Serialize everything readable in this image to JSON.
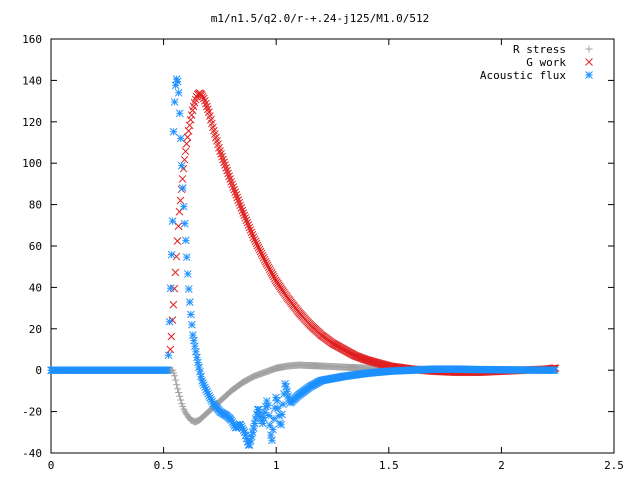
{
  "chart_data": {
    "type": "scatter",
    "title": "m1/n1.5/q2.0/r-+.24-j125/M1.0/512",
    "xlabel": "",
    "ylabel": "",
    "xlim": [
      0,
      2.5
    ],
    "ylim": [
      -40,
      160
    ],
    "xticks": [
      0,
      0.5,
      1,
      1.5,
      2,
      2.5
    ],
    "yticks": [
      -40,
      -20,
      0,
      20,
      40,
      60,
      80,
      100,
      120,
      140,
      160
    ],
    "xtick_labels": [
      "0",
      "0.5",
      "1",
      "1.5",
      "2",
      "2.5"
    ],
    "ytick_labels": [
      "-40",
      "-20",
      "0",
      "20",
      "40",
      "60",
      "80",
      "100",
      "120",
      "140",
      "160"
    ],
    "grid": false,
    "legend_position": "top-right",
    "series": [
      {
        "name": "R stress",
        "marker": "plus",
        "color": "#a0a0a0",
        "x": [
          0,
          0.1,
          0.2,
          0.3,
          0.4,
          0.5,
          0.54,
          0.55,
          0.56,
          0.57,
          0.58,
          0.59,
          0.6,
          0.62,
          0.64,
          0.66,
          0.68,
          0.7,
          0.75,
          0.8,
          0.85,
          0.9,
          0.95,
          1.0,
          1.05,
          1.1,
          1.2,
          1.3,
          1.4,
          1.5,
          1.6,
          1.8,
          2.0,
          2.2,
          2.24
        ],
        "y": [
          0,
          0,
          0,
          0,
          0,
          0,
          0,
          -3,
          -8,
          -12,
          -16,
          -19,
          -21,
          -24,
          -25,
          -24,
          -22,
          -20,
          -15,
          -10,
          -6,
          -3,
          -1,
          1,
          2,
          2.5,
          2,
          1.5,
          1,
          0.8,
          0.5,
          0.3,
          0.2,
          0.1,
          0
        ]
      },
      {
        "name": "G work",
        "marker": "cross",
        "color": "#e02020",
        "x": [
          0.53,
          0.535,
          0.54,
          0.545,
          0.55,
          0.56,
          0.57,
          0.58,
          0.59,
          0.6,
          0.61,
          0.62,
          0.63,
          0.64,
          0.65,
          0.66,
          0.67,
          0.68,
          0.7,
          0.72,
          0.75,
          0.8,
          0.85,
          0.9,
          0.95,
          1.0,
          1.05,
          1.1,
          1.15,
          1.2,
          1.25,
          1.3,
          1.35,
          1.4,
          1.45,
          1.5,
          1.6,
          1.7,
          1.8,
          1.9,
          2.0,
          2.1,
          2.2,
          2.24
        ],
        "y": [
          10,
          17,
          26,
          34,
          43,
          60,
          76,
          88,
          99,
          108,
          115,
          121,
          126,
          130,
          133,
          134,
          133,
          131,
          125,
          117,
          106,
          91,
          77,
          64,
          53,
          43,
          35,
          28,
          22,
          17,
          13,
          10,
          7,
          5,
          3.5,
          2,
          0.5,
          -0.5,
          -1,
          -1,
          -0.5,
          0,
          0.5,
          1
        ]
      },
      {
        "name": "Acoustic flux",
        "marker": "star",
        "color": "#1e90ff",
        "x": [
          0,
          0.1,
          0.2,
          0.3,
          0.4,
          0.5,
          0.52,
          0.54,
          0.545,
          0.55,
          0.555,
          0.56,
          0.565,
          0.57,
          0.575,
          0.58,
          0.585,
          0.59,
          0.6,
          0.61,
          0.62,
          0.63,
          0.65,
          0.67,
          0.7,
          0.72,
          0.75,
          0.78,
          0.8,
          0.82,
          0.84,
          0.86,
          0.88,
          0.9,
          0.92,
          0.94,
          0.96,
          0.98,
          1.0,
          1.02,
          1.04,
          1.06,
          1.1,
          1.15,
          1.2,
          1.3,
          1.4,
          1.5,
          1.6,
          1.7,
          1.8,
          1.9,
          2.0,
          2.1,
          2.2,
          2.24
        ],
        "y": [
          0,
          0,
          0,
          0,
          0,
          0,
          0,
          72,
          120,
          132,
          140,
          141,
          138,
          128,
          115,
          100,
          88,
          78,
          60,
          42,
          28,
          17,
          5,
          -5,
          -12,
          -16,
          -20,
          -22,
          -24,
          -28,
          -26,
          -30,
          -37,
          -28,
          -18,
          -26,
          -14,
          -35,
          -12,
          -28,
          -6,
          -16,
          -12,
          -8,
          -5,
          -3,
          -1.5,
          -0.5,
          0,
          0.5,
          0.5,
          0.3,
          0.2,
          0.1,
          0,
          0
        ]
      }
    ]
  }
}
